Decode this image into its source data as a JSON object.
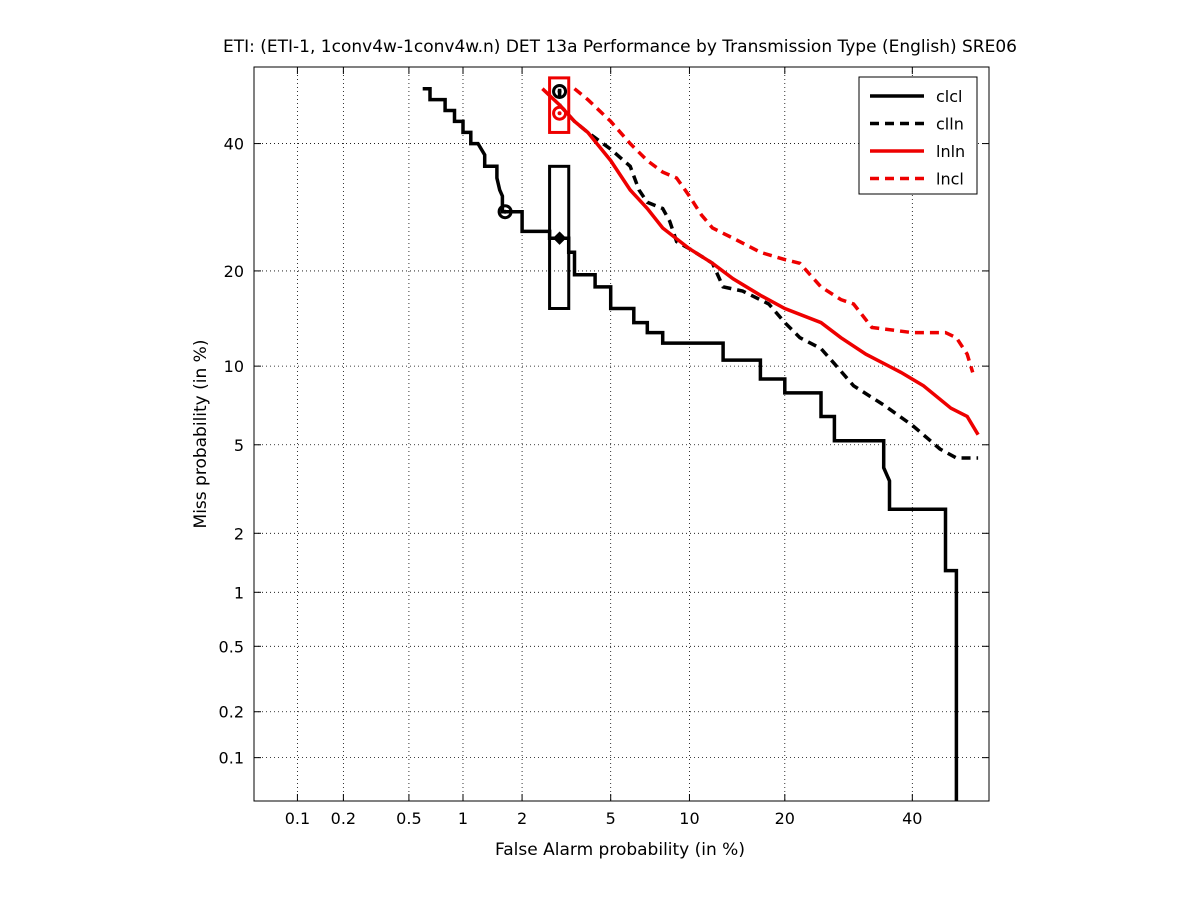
{
  "chart_data": {
    "type": "line",
    "title": "ETI: (ETI-1, 1conv4w-1conv4w.n) DET 13a Performance by Transmission Type (English) SRE06",
    "xlabel": "False Alarm probability (in %)",
    "ylabel": "Miss probability (in %)",
    "x_scale": "probit",
    "y_scale": "probit",
    "xlim": [
      0.05,
      54
    ],
    "ylim": [
      0.05,
      54
    ],
    "grid": true,
    "legend_position": "top-right",
    "x_ticks": [
      0.1,
      0.2,
      0.5,
      1,
      2,
      5,
      10,
      20,
      40
    ],
    "x_tick_labels": [
      "0.1",
      "0.2",
      "0.5",
      "1",
      "2",
      "5",
      "10",
      "20",
      "40"
    ],
    "y_ticks": [
      0.1,
      0.2,
      0.5,
      1,
      2,
      5,
      10,
      20,
      40
    ],
    "y_tick_labels": [
      "0.1",
      "0.2",
      "0.5",
      "1",
      "2",
      "5",
      "10",
      "20",
      "40"
    ],
    "series": [
      {
        "name": "clcl",
        "color": "#000000",
        "dash": "solid",
        "x": [
          0.6,
          0.66,
          0.66,
          0.8,
          0.8,
          0.9,
          0.9,
          1.0,
          1.0,
          1.1,
          1.1,
          1.2,
          1.3,
          1.3,
          1.5,
          1.5,
          1.55,
          1.6,
          1.6,
          2.0,
          2.0,
          2.7,
          2.7,
          3.3,
          3.3,
          3.5,
          3.5,
          4.3,
          4.3,
          5.0,
          5.0,
          6.2,
          6.2,
          7.0,
          7.0,
          8.0,
          8.0,
          13.0,
          13.0,
          17.0,
          17.0,
          20.0,
          20.0,
          25.0,
          25.0,
          27.0,
          27.0,
          35.0,
          35.0,
          36.0,
          36.0,
          46.0,
          46.0,
          48.0,
          48.0
        ],
        "y": [
          50,
          50,
          48,
          48,
          46,
          46,
          44,
          44,
          42,
          42,
          40,
          40,
          38,
          36,
          36,
          34,
          32,
          31,
          28.5,
          28.5,
          25.5,
          25.5,
          24.5,
          24.5,
          22.5,
          22.5,
          19.5,
          19.5,
          18,
          18,
          15.5,
          15.5,
          14,
          14,
          13,
          13,
          12,
          12,
          10.5,
          10.5,
          9,
          9,
          8,
          8,
          6.5,
          6.5,
          5.2,
          5.2,
          4,
          3.5,
          2.6,
          2.6,
          1.3,
          1.3,
          0.05
        ]
      },
      {
        "name": "clln",
        "color": "#000000",
        "dash": "dashed",
        "x": [
          3.0,
          3.0,
          3.5,
          4.0,
          5.0,
          6.0,
          6.5,
          7.0,
          8.0,
          8.5,
          9.0,
          10.0,
          12.0,
          13.0,
          15.0,
          18.0,
          20.0,
          22.0,
          25.0,
          27.0,
          30.0,
          35.0,
          40.0,
          45.0,
          48.0,
          52.0
        ],
        "y": [
          50,
          47,
          44,
          42,
          39,
          36,
          32,
          30,
          29,
          27,
          24,
          23,
          21,
          18,
          17.5,
          16,
          14,
          12.5,
          11.5,
          10.2,
          8.5,
          7.2,
          6.0,
          4.8,
          4.4,
          4.4
        ]
      },
      {
        "name": "lnln",
        "color": "#ee0000",
        "dash": "solid",
        "x": [
          2.5,
          3.0,
          3.5,
          4.0,
          5.0,
          6.0,
          7.0,
          8.0,
          10.0,
          12.0,
          14.0,
          17.0,
          20.0,
          25.0,
          28.0,
          32.0,
          38.0,
          42.0,
          47.0,
          50.0,
          52.0
        ],
        "y": [
          50,
          47,
          44,
          42,
          37,
          32,
          29,
          26,
          23,
          21,
          19,
          17,
          15.5,
          14,
          12.5,
          11,
          9.5,
          8.5,
          7.0,
          6.5,
          5.5
        ]
      },
      {
        "name": "lncl",
        "color": "#ee0000",
        "dash": "dashed",
        "x": [
          3.5,
          4.0,
          5.0,
          6.0,
          7.0,
          8.0,
          9.0,
          10.0,
          11.0,
          12.0,
          14.0,
          17.0,
          20.0,
          22.0,
          25.0,
          28.0,
          30.0,
          33.0,
          40.0,
          46.0,
          48.0,
          50.0,
          51.0
        ],
        "y": [
          50,
          48,
          44,
          40,
          37,
          35,
          34,
          31,
          28,
          26,
          24.5,
          22.5,
          21.5,
          21,
          18,
          16.5,
          16,
          13.5,
          13,
          13,
          12.5,
          11,
          9.5
        ]
      }
    ],
    "markers": [
      {
        "series": "clcl",
        "shape": "circle",
        "x": 1.65,
        "y": 28.5
      },
      {
        "series": "clcl",
        "shape": "diamond",
        "x": 3.0,
        "y": 24.5
      },
      {
        "series": "clln",
        "shape": "circle",
        "x": 3.0,
        "y": 49.5
      },
      {
        "series": "lnln",
        "shape": "circle",
        "x": 3.0,
        "y": 45.5
      }
    ],
    "confidence_boxes": [
      {
        "series": "clcl",
        "x_low": 2.7,
        "x_high": 3.3,
        "y_low": 15.5,
        "y_high": 36
      },
      {
        "series": "lnln",
        "x_low": 2.7,
        "x_high": 3.3,
        "y_low": 42,
        "y_high": 52
      }
    ]
  }
}
